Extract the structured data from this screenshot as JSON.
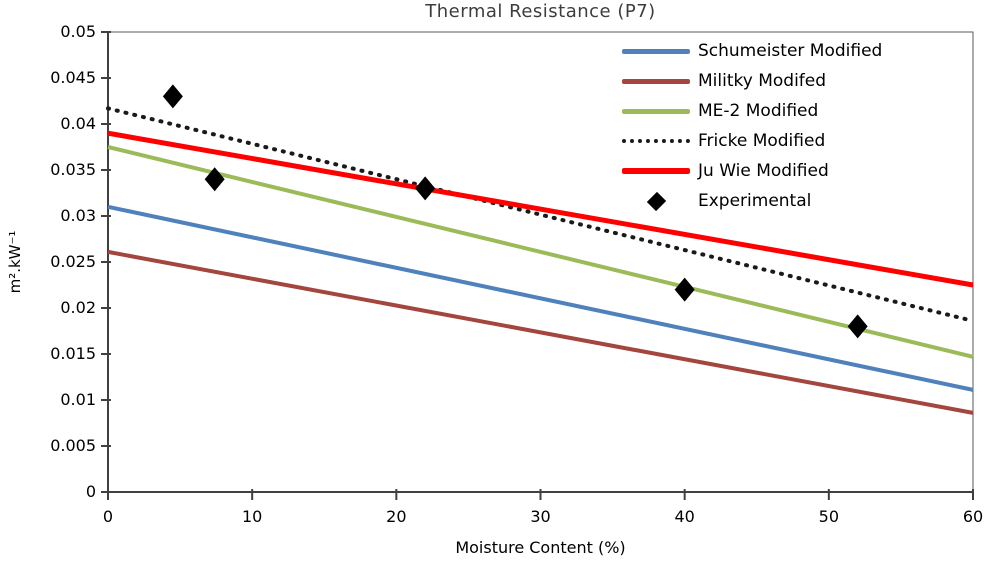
{
  "chart_data": {
    "type": "line",
    "title": "Thermal Resistance (P7)",
    "xlabel": "Moisture Content (%)",
    "ylabel": "m².kW⁻¹",
    "xlim": [
      0,
      60
    ],
    "ylim": [
      0,
      0.05
    ],
    "x_ticks": [
      0,
      10,
      20,
      30,
      40,
      50,
      60
    ],
    "y_ticks": [
      0,
      0.005,
      0.01,
      0.015,
      0.02,
      0.025,
      0.03,
      0.035,
      0.04,
      0.045,
      0.05
    ],
    "grid": false,
    "legend_position": "top-right-inside",
    "axis_color": "#404040",
    "frame_color": "#5a5a5a",
    "series": [
      {
        "name": "Schumeister Modified",
        "type": "line",
        "style": "solid",
        "color": "#4F81BD",
        "width": 4,
        "x": [
          0,
          60
        ],
        "y": [
          0.031,
          0.0111
        ]
      },
      {
        "name": "Militky Modifed",
        "type": "line",
        "style": "solid",
        "color": "#A4453E",
        "width": 4,
        "x": [
          0,
          60
        ],
        "y": [
          0.0261,
          0.0086
        ]
      },
      {
        "name": "ME-2 Modified",
        "type": "line",
        "style": "solid",
        "color": "#9BBB59",
        "width": 4,
        "x": [
          0,
          60
        ],
        "y": [
          0.0375,
          0.0147
        ]
      },
      {
        "name": "Fricke Modified",
        "type": "line",
        "style": "dotted",
        "color": "#1a1a1a",
        "width": 4,
        "x": [
          0,
          60
        ],
        "y": [
          0.0417,
          0.0186
        ]
      },
      {
        "name": "Ju Wie Modified",
        "type": "line",
        "style": "solid",
        "color": "#FF0000",
        "width": 5,
        "x": [
          0,
          60
        ],
        "y": [
          0.039,
          0.0225
        ]
      },
      {
        "name": "Experimental",
        "type": "scatter",
        "marker": "diamond",
        "color": "#000000",
        "x": [
          4.5,
          7.4,
          22,
          40,
          52
        ],
        "y": [
          0.043,
          0.034,
          0.033,
          0.022,
          0.018
        ]
      }
    ]
  }
}
